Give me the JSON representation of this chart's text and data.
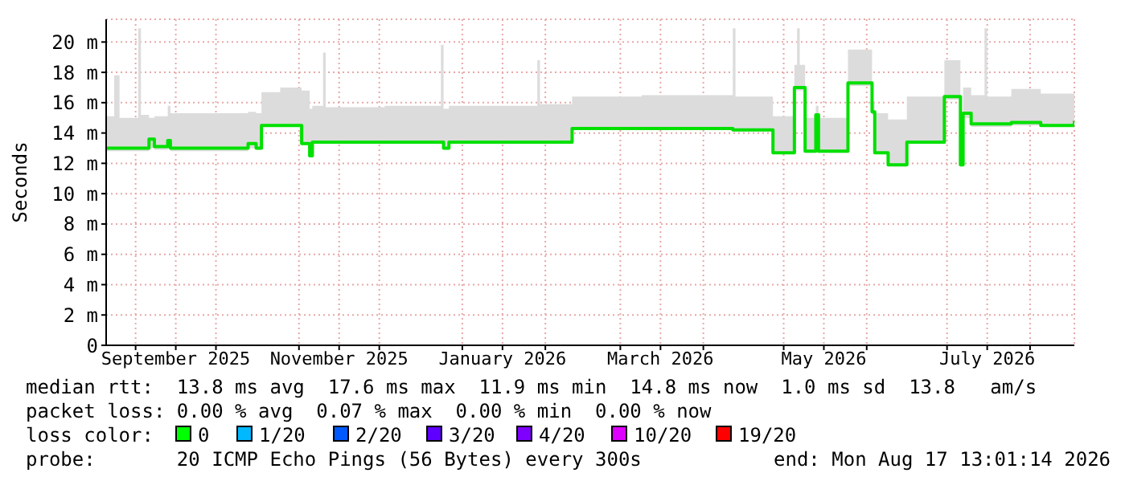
{
  "chart_data": {
    "type": "step",
    "ylabel": "Seconds",
    "x": [
      "2025-08-21",
      "2025-08-24",
      "2025-08-26",
      "2025-09-02",
      "2025-09-03",
      "2025-09-06",
      "2025-09-08",
      "2025-09-13",
      "2025-09-14",
      "2025-09-28",
      "2025-10-13",
      "2025-10-16",
      "2025-10-18",
      "2025-10-25",
      "2025-11-02",
      "2025-11-05",
      "2025-11-06",
      "2025-11-10",
      "2025-11-11",
      "2025-12-03",
      "2025-12-24",
      "2025-12-25",
      "2025-12-27",
      "2026-01-29",
      "2026-01-30",
      "2026-02-11",
      "2026-03-09",
      "2026-04-12",
      "2026-04-13",
      "2026-04-27",
      "2026-05-05",
      "2026-05-06",
      "2026-05-07",
      "2026-05-09",
      "2026-05-13",
      "2026-05-14",
      "2026-05-25",
      "2026-06-03",
      "2026-06-04",
      "2026-06-09",
      "2026-06-16",
      "2026-06-30",
      "2026-07-06",
      "2026-07-07",
      "2026-07-10",
      "2026-07-15",
      "2026-07-16",
      "2026-07-25",
      "2026-08-05",
      "2026-08-17T13:01"
    ],
    "series": [
      {
        "color": "#00e000",
        "values": [
          13.0,
          13.0,
          13.0,
          13.0,
          13.0,
          13.6,
          13.1,
          13.5,
          13.0,
          13.0,
          13.3,
          13.0,
          14.5,
          14.5,
          13.3,
          12.5,
          13.4,
          13.4,
          13.4,
          13.4,
          13.4,
          13.0,
          13.4,
          13.4,
          13.4,
          14.3,
          14.3,
          14.2,
          14.2,
          12.7,
          17.0,
          17.0,
          17.0,
          12.8,
          15.2,
          12.8,
          17.3,
          15.4,
          12.7,
          11.9,
          13.4,
          16.4,
          11.9,
          15.3,
          14.6,
          14.6,
          14.6,
          14.7,
          14.5,
          14.8
        ],
        "lower": [
          12.8,
          12.8,
          12.8,
          12.8,
          12.8,
          13.0,
          12.9,
          13.0,
          12.8,
          12.8,
          13.0,
          12.9,
          14.4,
          14.4,
          13.2,
          12.4,
          13.3,
          13.3,
          13.3,
          13.3,
          13.3,
          12.9,
          13.3,
          13.3,
          13.3,
          14.2,
          14.2,
          14.1,
          14.1,
          12.6,
          16.8,
          16.8,
          16.8,
          12.7,
          15.0,
          12.7,
          17.1,
          15.2,
          12.6,
          11.8,
          13.3,
          16.2,
          11.8,
          15.0,
          14.4,
          14.4,
          14.4,
          14.5,
          14.4,
          14.6
        ],
        "upper": [
          15.1,
          17.8,
          15.0,
          20.9,
          15.2,
          15.0,
          15.1,
          15.8,
          15.3,
          15.3,
          15.4,
          15.3,
          16.7,
          17.0,
          16.8,
          15.6,
          15.8,
          19.3,
          15.7,
          15.8,
          19.8,
          15.6,
          15.8,
          18.8,
          15.9,
          16.4,
          16.5,
          20.9,
          16.4,
          15.1,
          18.5,
          20.9,
          18.5,
          15.0,
          15.8,
          15.0,
          19.5,
          16.0,
          15.3,
          14.9,
          16.4,
          18.8,
          15.2,
          17.0,
          16.5,
          20.9,
          16.4,
          16.9,
          16.6,
          16.7
        ]
      }
    ],
    "xlim": [
      "2025-08-21",
      "2026-08-17T13:01"
    ],
    "xticks": [
      {
        "value": "2025-09-01",
        "label": null
      },
      {
        "value": "2025-09-16",
        "label": "September 2025"
      },
      {
        "value": "2025-10-01",
        "label": null
      },
      {
        "value": "2025-11-01",
        "label": null
      },
      {
        "value": "2025-11-16",
        "label": "November 2025"
      },
      {
        "value": "2025-12-01",
        "label": null
      },
      {
        "value": "2026-01-01",
        "label": null
      },
      {
        "value": "2026-01-16",
        "label": "January 2026"
      },
      {
        "value": "2026-02-01",
        "label": null
      },
      {
        "value": "2026-03-01",
        "label": null
      },
      {
        "value": "2026-03-16",
        "label": "March 2026"
      },
      {
        "value": "2026-04-01",
        "label": null
      },
      {
        "value": "2026-05-01",
        "label": null
      },
      {
        "value": "2026-05-16",
        "label": "May 2026"
      },
      {
        "value": "2026-06-01",
        "label": null
      },
      {
        "value": "2026-07-01",
        "label": null
      },
      {
        "value": "2026-07-16",
        "label": "July 2026"
      },
      {
        "value": "2026-08-01",
        "label": null
      }
    ],
    "ylim": [
      0,
      21.5
    ],
    "yticks": [
      0,
      {
        "value": 2,
        "label": "2 m"
      },
      {
        "value": 4,
        "label": "4 m"
      },
      {
        "value": 6,
        "label": "6 m"
      },
      {
        "value": 8,
        "label": "8 m"
      },
      {
        "value": 10,
        "label": "10 m"
      },
      {
        "value": 12,
        "label": "12 m"
      },
      {
        "value": 14,
        "label": "14 m"
      },
      {
        "value": 16,
        "label": "16 m"
      },
      {
        "value": 18,
        "label": "18 m"
      },
      {
        "value": 20,
        "label": "20 m"
      }
    ],
    "grid": true,
    "annotations": [
      "median rtt:  13.8 ms avg  17.6 ms max  11.9 ms min  14.8 ms now  1.0 ms sd  13.8   am/s",
      "packet loss: 0.00 % avg  0.07 % max  0.00 % min  0.00 % now",
      "loss color:",
      "0",
      "1/20",
      "2/20",
      "3/20",
      "4/20",
      "10/20",
      "19/20",
      "probe:       20 ICMP Echo Pings (56 Bytes) every 300s",
      "end: Mon Aug 17 13:01:14 2026"
    ]
  }
}
